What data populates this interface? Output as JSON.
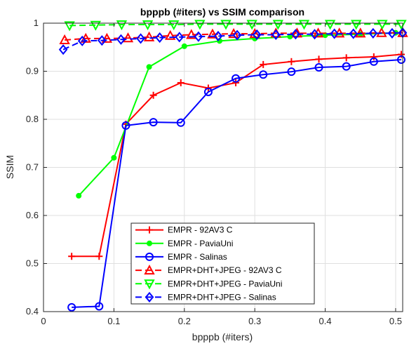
{
  "chart_data": {
    "type": "line",
    "title": "bpppb (#iters) vs SSIM comparison",
    "xlabel": "bpppb (#iters)",
    "ylabel": "SSIM",
    "xlim": [
      0,
      0.51
    ],
    "ylim": [
      0.4,
      1.0
    ],
    "xticks": [
      0,
      0.1,
      0.2,
      0.3,
      0.4,
      0.5
    ],
    "xtick_labels": [
      "0",
      "0.1",
      "0.2",
      "0.3",
      "0.4",
      "0.5"
    ],
    "yticks": [
      0.4,
      0.5,
      0.6,
      0.7,
      0.8,
      0.9,
      1.0
    ],
    "ytick_labels": [
      "0.4",
      "0.5",
      "0.6",
      "0.7",
      "0.8",
      "0.9",
      "1"
    ],
    "grid": true,
    "legend_position": "bottom-center",
    "series": [
      {
        "name": "EMPR - 92AV3 C",
        "color": "#ff0000",
        "line": "solid",
        "marker": "plus",
        "x": [
          0.04,
          0.079,
          0.117,
          0.156,
          0.195,
          0.234,
          0.273,
          0.312,
          0.352,
          0.391,
          0.43,
          0.469,
          0.508
        ],
        "y": [
          0.515,
          0.515,
          0.79,
          0.85,
          0.876,
          0.865,
          0.876,
          0.914,
          0.92,
          0.925,
          0.928,
          0.93,
          0.935
        ]
      },
      {
        "name": "EMPR - PaviaUni",
        "color": "#00ff00",
        "line": "solid",
        "marker": "dot",
        "x": [
          0.05,
          0.1,
          0.15,
          0.2,
          0.25,
          0.3,
          0.35,
          0.4,
          0.45,
          0.5
        ],
        "y": [
          0.641,
          0.72,
          0.909,
          0.952,
          0.963,
          0.968,
          0.972,
          0.975,
          0.977,
          0.98
        ]
      },
      {
        "name": "EMPR - Salinas",
        "color": "#0000ff",
        "line": "solid",
        "marker": "circle",
        "x": [
          0.04,
          0.079,
          0.117,
          0.156,
          0.195,
          0.234,
          0.273,
          0.312,
          0.352,
          0.391,
          0.43,
          0.469,
          0.508
        ],
        "y": [
          0.409,
          0.411,
          0.787,
          0.794,
          0.793,
          0.857,
          0.885,
          0.893,
          0.899,
          0.908,
          0.91,
          0.92,
          0.924
        ]
      },
      {
        "name": "EMPR+DHT+JPEG - 92AV3 C",
        "color": "#ff0000",
        "line": "dashed",
        "marker": "triangle-up",
        "x": [
          0.03,
          0.06,
          0.09,
          0.12,
          0.15,
          0.18,
          0.21,
          0.24,
          0.27,
          0.3,
          0.33,
          0.36,
          0.39,
          0.42,
          0.45,
          0.48,
          0.51
        ],
        "y": [
          0.965,
          0.968,
          0.968,
          0.969,
          0.971,
          0.974,
          0.976,
          0.977,
          0.978,
          0.978,
          0.979,
          0.979,
          0.979,
          0.979,
          0.979,
          0.98,
          0.98
        ]
      },
      {
        "name": "EMPR+DHT+JPEG - PaviaUni",
        "color": "#00ff00",
        "line": "dashed",
        "marker": "triangle-down",
        "x": [
          0.037,
          0.074,
          0.111,
          0.148,
          0.185,
          0.222,
          0.259,
          0.296,
          0.333,
          0.37,
          0.407,
          0.444,
          0.481,
          0.508
        ],
        "y": [
          0.995,
          0.996,
          0.997,
          0.997,
          0.997,
          0.998,
          0.998,
          0.998,
          0.998,
          0.998,
          0.998,
          0.998,
          0.998,
          0.998
        ]
      },
      {
        "name": "EMPR+DHT+JPEG - Salinas",
        "color": "#0000ff",
        "line": "dashed",
        "marker": "diamond",
        "x": [
          0.028,
          0.055,
          0.083,
          0.11,
          0.138,
          0.165,
          0.193,
          0.22,
          0.248,
          0.275,
          0.303,
          0.33,
          0.358,
          0.385,
          0.413,
          0.44,
          0.468,
          0.495,
          0.51
        ],
        "y": [
          0.945,
          0.963,
          0.964,
          0.966,
          0.968,
          0.97,
          0.971,
          0.972,
          0.973,
          0.975,
          0.976,
          0.976,
          0.977,
          0.977,
          0.978,
          0.978,
          0.979,
          0.979,
          0.98
        ]
      }
    ]
  }
}
